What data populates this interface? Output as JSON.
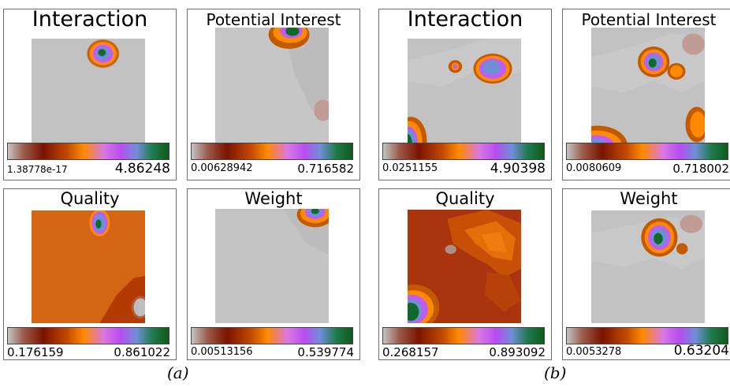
{
  "panels": {
    "a_interaction": {
      "title": "Interaction",
      "min": "1.38778e-17",
      "max": "4.86248"
    },
    "a_potential": {
      "title": "Potential Interest",
      "min": "0.00628942",
      "max": "0.716582"
    },
    "b_interaction": {
      "title": "Interaction",
      "min": "0.0251155",
      "max": "4.90398"
    },
    "b_potential": {
      "title": "Potential Interest",
      "min": "0.0080609",
      "max": "0.718002"
    },
    "a_quality": {
      "title": "Quality",
      "min": "0.176159",
      "max": "0.861022"
    },
    "a_weight": {
      "title": "Weight",
      "min": "0.00513156",
      "max": "0.539774"
    },
    "b_quality": {
      "title": "Quality",
      "min": "0.268157",
      "max": "0.893092"
    },
    "b_weight": {
      "title": "Weight",
      "min": "0.0053278",
      "max": "0.63204"
    }
  },
  "captions": {
    "a": "(a)",
    "b": "(b)"
  },
  "colors": {
    "background_gray": "#c0c0c0",
    "dark_red": "#7a1400",
    "orange": "#ff8a00",
    "violet": "#c05cf0",
    "blue": "#6f8ed8",
    "green": "#0f6a2a"
  }
}
